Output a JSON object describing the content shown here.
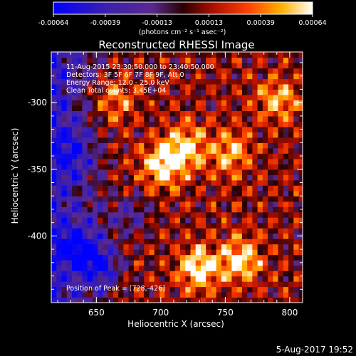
{
  "colorbar": {
    "ticks": [
      "-0.00064",
      "-0.00039",
      "-0.00013",
      "0.00013",
      "0.00039",
      "0.00064"
    ],
    "unit_label": "(photons cm⁻² s⁻¹ asec⁻²)"
  },
  "chart_data": {
    "type": "heatmap",
    "title": "Reconstructed RHESSI Image",
    "xlabel": "Heliocentric X (arcsec)",
    "ylabel": "Heliocentric Y (arcsec)",
    "xlim": [
      615,
      810
    ],
    "ylim": [
      -450,
      -262
    ],
    "x_ticks": [
      "650",
      "700",
      "750",
      "800"
    ],
    "y_ticks": [
      "-300",
      "-350",
      "-400"
    ],
    "value_range": [
      -0.00064,
      0.00064
    ],
    "colormap": "rhessi-heat",
    "annotations": [
      "11-Aug-2015 23:30:50.000 to 23:40:50.000",
      "Detectors: 3F 5F 6F 7F 8F 9F, Att 0",
      "Energy Range: 12.0 - 25.0 keV",
      "Clean     Total counts: 3.45E+04",
      "Position of Peak = [728,-426]"
    ],
    "peak_position": [
      728,
      -426
    ],
    "bright_sources": [
      {
        "x": 700,
        "y": -348,
        "level": 1.0
      },
      {
        "x": 728,
        "y": -426,
        "level": 1.0
      },
      {
        "x": 760,
        "y": -420,
        "level": 0.9
      },
      {
        "x": 718,
        "y": -335,
        "level": 0.8
      },
      {
        "x": 752,
        "y": -340,
        "level": 0.7
      },
      {
        "x": 790,
        "y": -300,
        "level": 0.7
      },
      {
        "x": 660,
        "y": -300,
        "level": 0.6
      }
    ],
    "dark_regions": [
      {
        "x": 635,
        "y": -410,
        "level": -0.8
      },
      {
        "x": 652,
        "y": -425,
        "level": -0.9
      },
      {
        "x": 630,
        "y": -340,
        "level": -0.5
      },
      {
        "x": 672,
        "y": -385,
        "level": -0.5
      }
    ]
  },
  "footer": {
    "date": "5-Aug-2017 19:52"
  }
}
